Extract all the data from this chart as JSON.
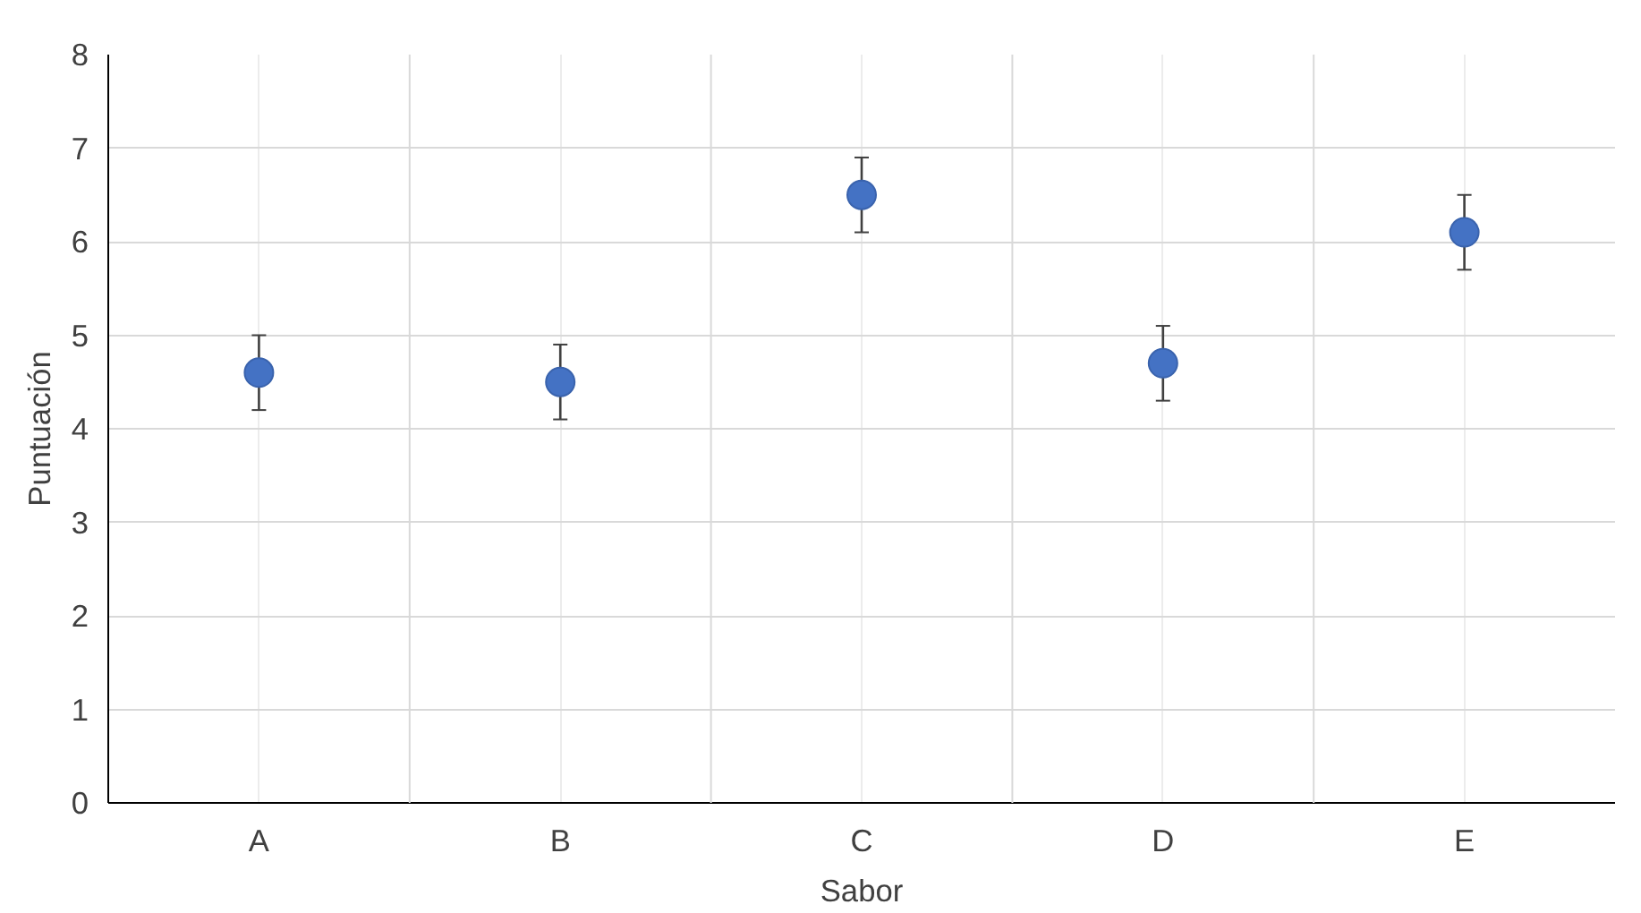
{
  "chart_data": {
    "type": "scatter",
    "xlabel": "Sabor",
    "ylabel": "Puntuación",
    "categories": [
      "A",
      "B",
      "C",
      "D",
      "E"
    ],
    "values": [
      4.6,
      4.5,
      6.5,
      4.7,
      6.1
    ],
    "errors": [
      0.4,
      0.4,
      0.4,
      0.4,
      0.4
    ],
    "color": "#4472c4",
    "marker": "circle",
    "ylim": [
      0,
      8
    ],
    "yticks": [
      0,
      1,
      2,
      3,
      4,
      5,
      6,
      7,
      8
    ],
    "grid": true
  }
}
